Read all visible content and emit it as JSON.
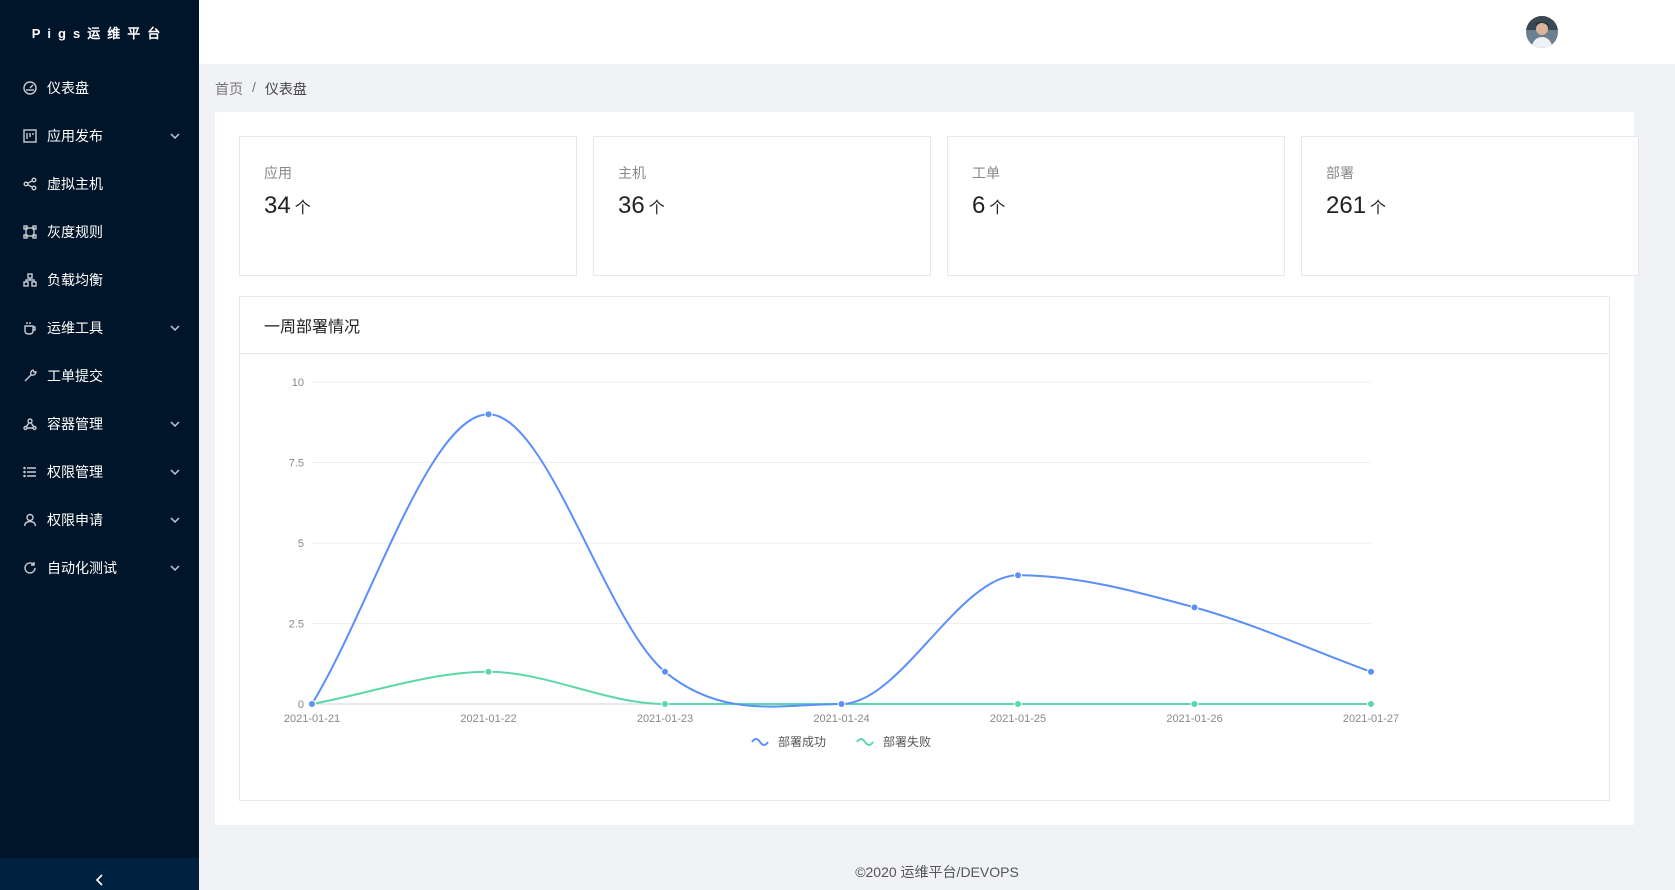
{
  "sidebar": {
    "logo": "Pigs运维平台",
    "items": [
      {
        "label": "仪表盘",
        "icon": "dashboard-icon",
        "has_children": false
      },
      {
        "label": "应用发布",
        "icon": "project-icon",
        "has_children": true
      },
      {
        "label": "虚拟主机",
        "icon": "share-icon",
        "has_children": false
      },
      {
        "label": "灰度规则",
        "icon": "gateway-icon",
        "has_children": false
      },
      {
        "label": "负载均衡",
        "icon": "cluster-icon",
        "has_children": false
      },
      {
        "label": "运维工具",
        "icon": "coffee-icon",
        "has_children": true
      },
      {
        "label": "工单提交",
        "icon": "tool-icon",
        "has_children": false
      },
      {
        "label": "容器管理",
        "icon": "deployment-icon",
        "has_children": true
      },
      {
        "label": "权限管理",
        "icon": "list-icon",
        "has_children": true
      },
      {
        "label": "权限申请",
        "icon": "user-icon",
        "has_children": true
      },
      {
        "label": "自动化测试",
        "icon": "sync-icon",
        "has_children": true
      }
    ]
  },
  "breadcrumb": {
    "home": "首页",
    "separator": "/",
    "current": "仪表盘"
  },
  "stats": [
    {
      "title": "应用",
      "value": "34",
      "unit": "个"
    },
    {
      "title": "主机",
      "value": "36",
      "unit": "个"
    },
    {
      "title": "工单",
      "value": "6",
      "unit": "个"
    },
    {
      "title": "部署",
      "value": "261",
      "unit": "个"
    }
  ],
  "chart": {
    "title": "一周部署情况"
  },
  "chart_data": {
    "type": "line",
    "smooth": true,
    "x": [
      "2021-01-21",
      "2021-01-22",
      "2021-01-23",
      "2021-01-24",
      "2021-01-25",
      "2021-01-26",
      "2021-01-27"
    ],
    "ylim": [
      0,
      10
    ],
    "yticks": [
      "0",
      "2.5",
      "5",
      "7.5",
      "10"
    ],
    "grid": true,
    "legend_position": "bottom",
    "series": [
      {
        "name": "部署成功",
        "color": "#5b8ff9",
        "values": [
          0,
          9,
          1,
          0,
          4,
          3,
          1
        ]
      },
      {
        "name": "部署失败",
        "color": "#5ad8a6",
        "values": [
          0,
          1,
          0,
          0,
          0,
          0,
          0
        ]
      }
    ]
  },
  "footer": "©2020 运维平台/DEVOPS"
}
